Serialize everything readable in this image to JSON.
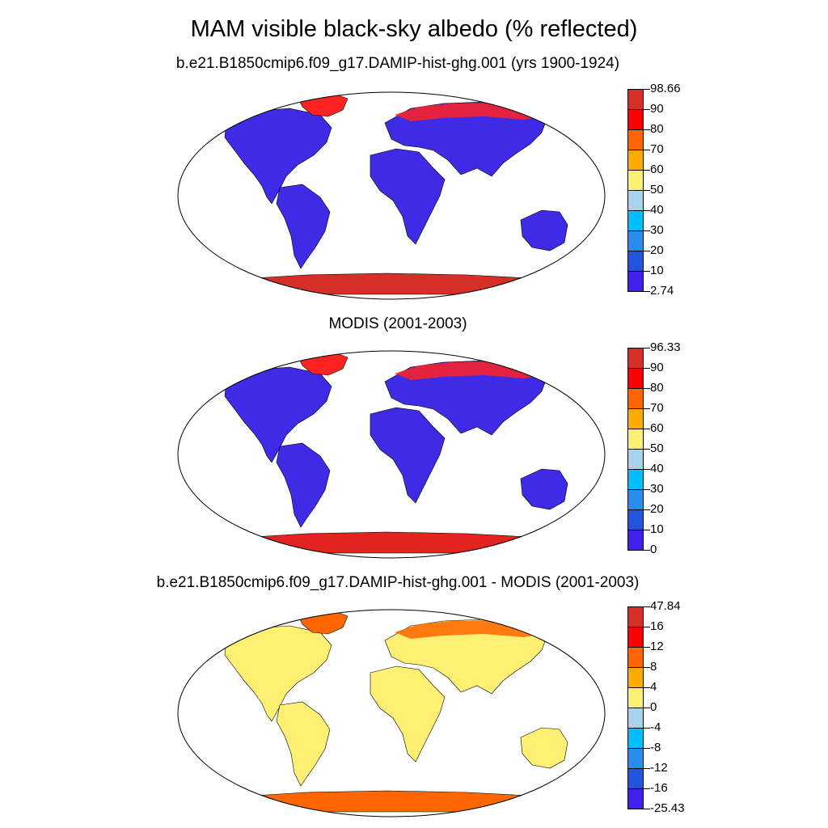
{
  "title": "MAM visible black-sky albedo (% reflected)",
  "panels": [
    {
      "id": "model",
      "title": "b.e21.B1850cmip6.f09_g17.DAMIP-hist-ghg.001 (yrs 1900-1924)",
      "colorbar": {
        "labels": [
          "98.66",
          "90",
          "80",
          "70",
          "60",
          "50",
          "40",
          "30",
          "20",
          "10",
          "2.74"
        ],
        "colors": [
          "#d62f27",
          "#ff0000",
          "#ff6600",
          "#ffaa00",
          "#fff073",
          "#a6d4f0",
          "#00bfff",
          "#2b8cee",
          "#2255dd",
          "#4020ee"
        ]
      },
      "land_color": "#3f2ae6",
      "arctic_color": "#ff2222",
      "antarctic_color": "#d62f27"
    },
    {
      "id": "obs",
      "title": "MODIS (2001-2003)",
      "colorbar": {
        "labels": [
          "96.33",
          "90",
          "80",
          "70",
          "60",
          "50",
          "40",
          "30",
          "20",
          "10",
          "0"
        ],
        "colors": [
          "#d62f27",
          "#ff0000",
          "#ff6600",
          "#ffaa00",
          "#fff073",
          "#a6d4f0",
          "#00bfff",
          "#2b8cee",
          "#2255dd",
          "#4020ee"
        ]
      },
      "land_color": "#3f2ae6",
      "arctic_color": "#ff2222",
      "antarctic_color": "#e3231f"
    },
    {
      "id": "diff",
      "title": "b.e21.B1850cmip6.f09_g17.DAMIP-hist-ghg.001 - MODIS (2001-2003)",
      "colorbar": {
        "labels": [
          "47.84",
          "16",
          "12",
          "8",
          "4",
          "0",
          "-4",
          "-8",
          "-12",
          "-16",
          "-25.43"
        ],
        "colors": [
          "#d62f27",
          "#ff0000",
          "#ff6600",
          "#ffaa00",
          "#fff073",
          "#a6d4f0",
          "#00bfff",
          "#2b8cee",
          "#2255dd",
          "#4020ee"
        ]
      },
      "land_color": "#fff073",
      "arctic_color": "#ff6600",
      "antarctic_color": "#ff6600"
    }
  ]
}
